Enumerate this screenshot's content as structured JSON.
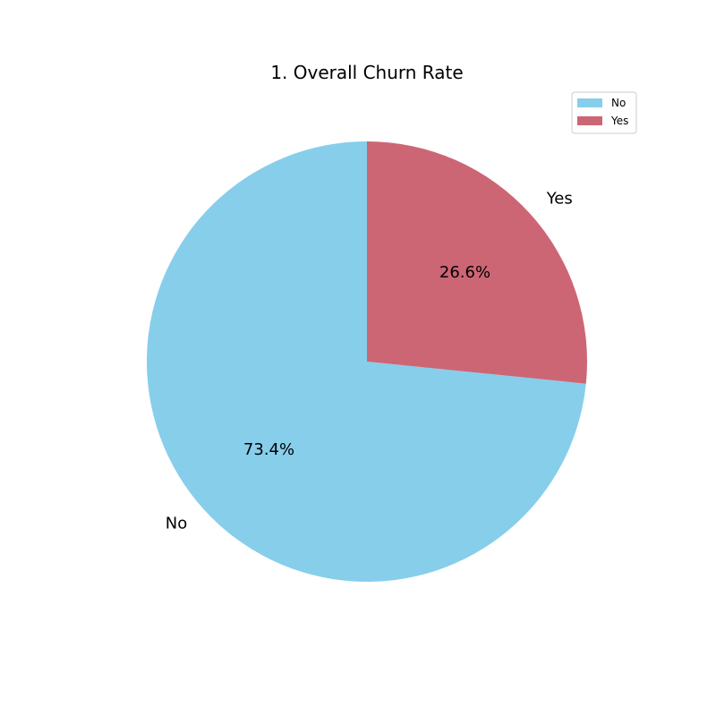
{
  "chart_data": {
    "type": "pie",
    "title": "1. Overall Churn Rate",
    "slices": [
      {
        "label": "No",
        "value": 73.4,
        "pct_label": "73.4%",
        "color": "#87ceeb"
      },
      {
        "label": "Yes",
        "value": 26.6,
        "pct_label": "26.6%",
        "color": "#cd6674"
      }
    ],
    "start_angle_deg": 90,
    "direction": "counterclockwise",
    "legend": {
      "position": "top-right",
      "entries": [
        "No",
        "Yes"
      ]
    }
  }
}
